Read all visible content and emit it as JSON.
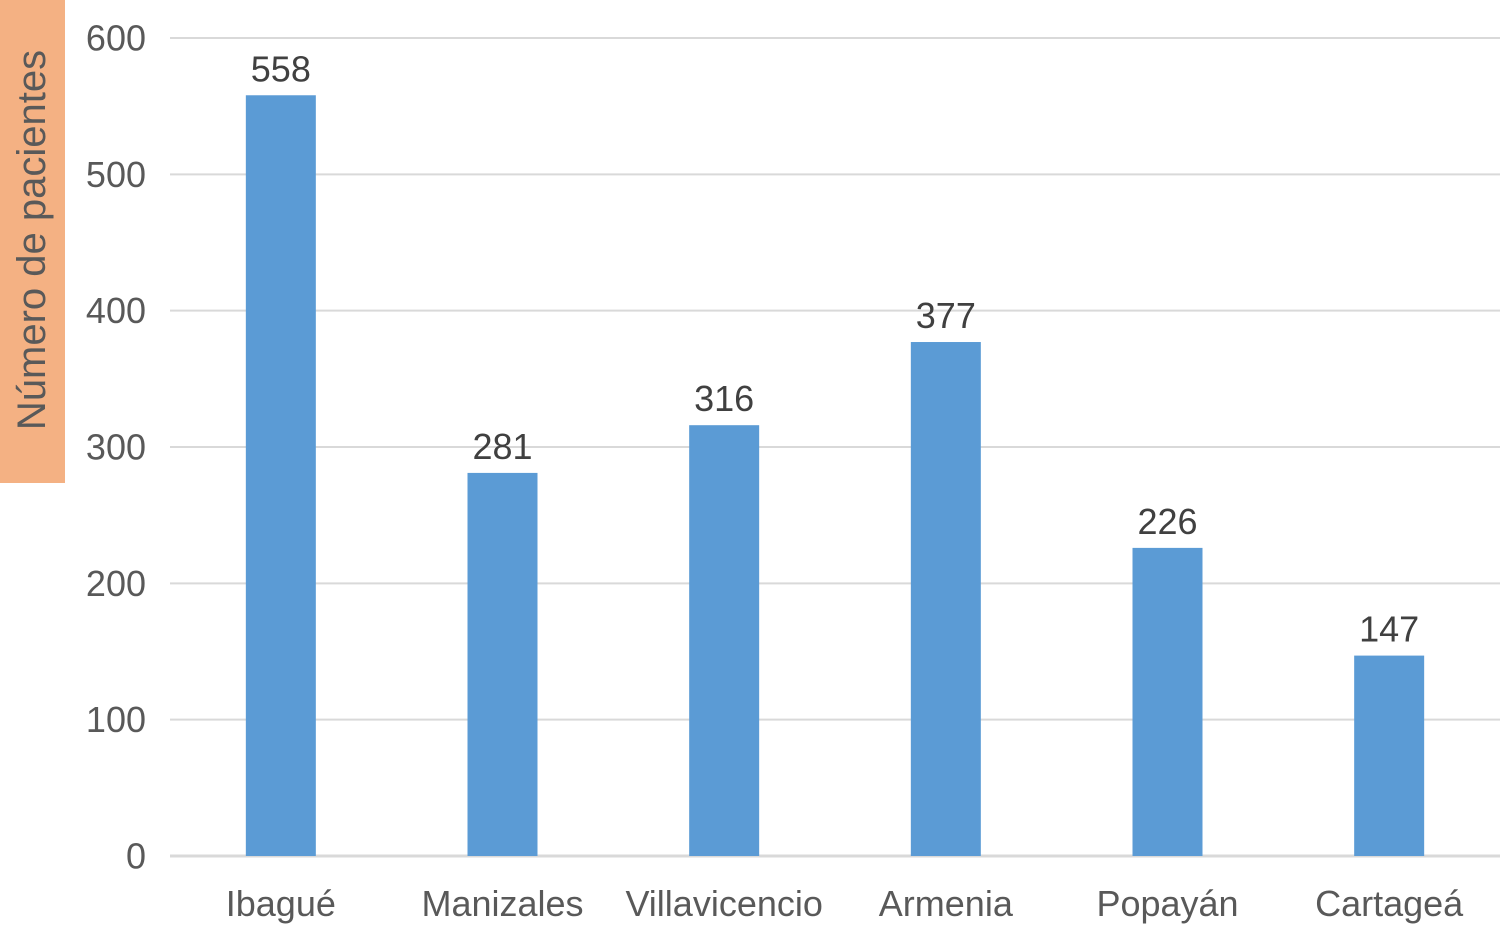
{
  "chart_data": {
    "type": "bar",
    "categories": [
      "Ibagué",
      "Manizales",
      "Villavicencio",
      "Armenia",
      "Popayán",
      "Cartageá"
    ],
    "values": [
      558,
      281,
      316,
      377,
      226,
      147
    ],
    "title": "",
    "xlabel": "",
    "ylabel": "Número de pacientes",
    "ylim": [
      0,
      600
    ],
    "yticks": [
      0,
      100,
      200,
      300,
      400,
      500,
      600
    ],
    "grid": true,
    "legend": "none",
    "data_labels": true,
    "colors": {
      "bar": "#5b9bd5",
      "grid": "#d9d9d9",
      "ylabel_highlight": "#f4b183"
    }
  }
}
